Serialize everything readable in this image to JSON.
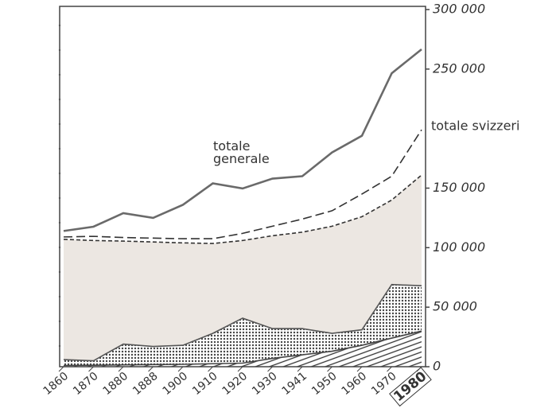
{
  "chart_data": {
    "type": "line",
    "categories": [
      "1860",
      "1870",
      "1880",
      "1888",
      "1900",
      "1910",
      "1920",
      "1930",
      "1941",
      "1950",
      "1960",
      "1970",
      "1980"
    ],
    "highlight_category": "1980",
    "ylim": [
      0,
      300000
    ],
    "yticks": [
      0,
      {
        "value": 50000,
        "label": "50 000"
      },
      {
        "value": 100000,
        "label": "100 000"
      },
      {
        "value": 150000,
        "label": "150 000"
      },
      {
        "value": 250000,
        "label": "250 000"
      },
      {
        "value": 300000,
        "label": "300 000"
      }
    ],
    "axis_side": "right",
    "series": [
      {
        "name": "totale generale",
        "color": "#6a6a6a",
        "line": "solid",
        "values": [
          114000,
          117600,
          129000,
          125000,
          136000,
          154000,
          149700,
          158000,
          160000,
          180000,
          194000,
          246500,
          266600
        ]
      },
      {
        "name": "totale svizzeri",
        "color": "#333333",
        "line": "dashed",
        "values": [
          109000,
          109500,
          108500,
          108000,
          107500,
          107500,
          112000,
          118000,
          124000,
          131000,
          145000,
          160000,
          199000
        ]
      },
      {
        "color": "#333333",
        "line": "short-dashed",
        "fill": "#ece7e2",
        "values": [
          107000,
          106000,
          105500,
          104800,
          104000,
          103500,
          106000,
          110000,
          113000,
          118000,
          126000,
          140000,
          161000
        ]
      },
      {
        "color": "#555555",
        "line": "solid",
        "fill": "dots",
        "values": [
          6000,
          5000,
          19000,
          17000,
          18000,
          28000,
          40800,
          32000,
          32000,
          28000,
          31000,
          69000,
          68000
        ]
      },
      {
        "color": "#444444",
        "line": "solid",
        "fill": "hatch",
        "values": [
          1000,
          1200,
          1500,
          1800,
          2000,
          2500,
          3000,
          7000,
          10000,
          13000,
          18000,
          24000,
          30000
        ]
      }
    ]
  }
}
